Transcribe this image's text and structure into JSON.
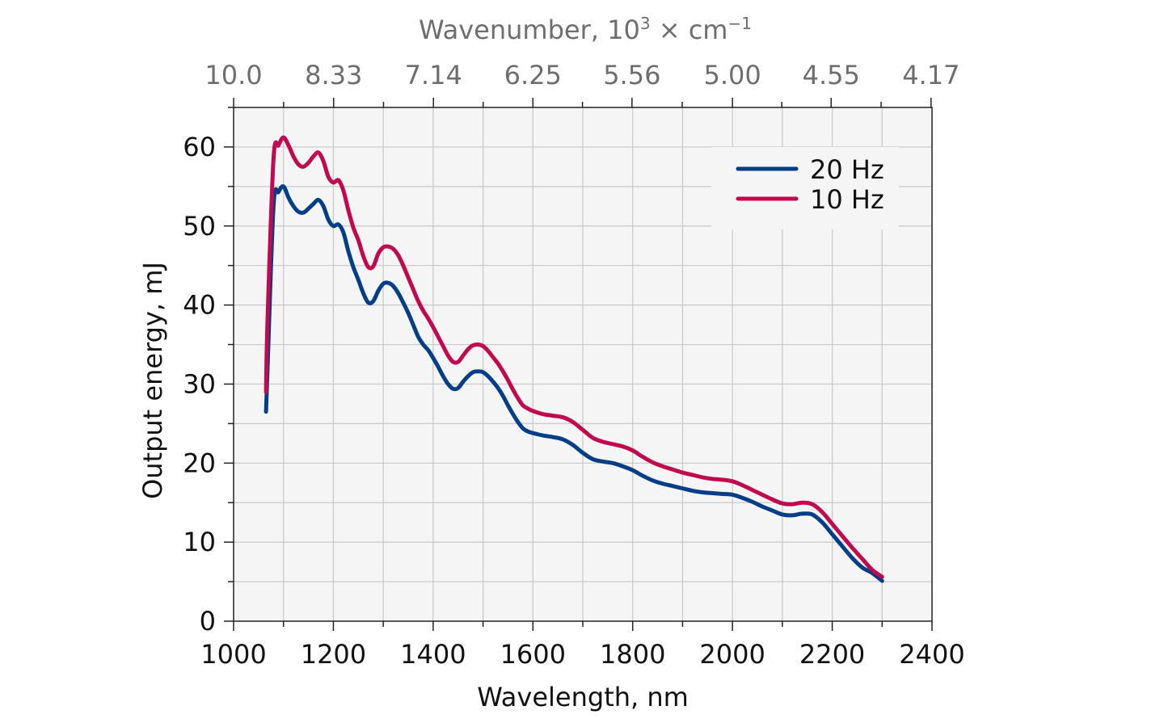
{
  "chart_data": {
    "type": "line",
    "xlabel": "Wavelength, nm",
    "ylabel": "Output energy, mJ",
    "top_axis": {
      "label_prefix": "Wavenumber, 10",
      "label_exponent": "3",
      "label_mid": " × cm",
      "label_unit_exponent": "−1",
      "tick_labels": [
        "10.0",
        "8.33",
        "7.14",
        "6.25",
        "5.56",
        "5.00",
        "4.55",
        "4.17"
      ],
      "tick_wavenumbers": [
        10.0,
        8.33,
        7.14,
        6.25,
        5.56,
        5.0,
        4.55,
        4.17
      ]
    },
    "xlim": [
      1000,
      2400
    ],
    "ylim": [
      0,
      65
    ],
    "x_ticks": [
      1000,
      1200,
      1400,
      1600,
      1800,
      2000,
      2200,
      2400
    ],
    "y_ticks": [
      0,
      10,
      20,
      30,
      40,
      50,
      60
    ],
    "grid": true,
    "legend_position": "top-right",
    "series": [
      {
        "name": "20 Hz",
        "color": "#003f87",
        "x": [
          1065,
          1068,
          1080,
          1090,
          1100,
          1110,
          1120,
          1130,
          1140,
          1150,
          1160,
          1170,
          1180,
          1190,
          1200,
          1210,
          1220,
          1230,
          1240,
          1250,
          1260,
          1270,
          1280,
          1290,
          1300,
          1310,
          1320,
          1330,
          1340,
          1350,
          1360,
          1370,
          1380,
          1390,
          1400,
          1410,
          1420,
          1430,
          1440,
          1450,
          1460,
          1470,
          1480,
          1490,
          1500,
          1510,
          1520,
          1530,
          1540,
          1550,
          1560,
          1570,
          1580,
          1590,
          1600,
          1620,
          1640,
          1660,
          1680,
          1700,
          1720,
          1740,
          1760,
          1780,
          1800,
          1820,
          1840,
          1860,
          1880,
          1900,
          1920,
          1940,
          1960,
          1980,
          2000,
          2020,
          2040,
          2060,
          2080,
          2100,
          2120,
          2140,
          2160,
          2180,
          2200,
          2220,
          2240,
          2260,
          2280,
          2300
        ],
        "values": [
          26.5,
          32,
          52.5,
          54.3,
          55.0,
          53.6,
          52.5,
          51.8,
          51.7,
          52.2,
          52.8,
          53.3,
          52.5,
          50.8,
          50.0,
          50.2,
          49.2,
          46.8,
          44.8,
          43.2,
          41.5,
          40.3,
          40.5,
          41.8,
          42.7,
          42.8,
          42.4,
          41.5,
          40.3,
          39.0,
          37.5,
          36.0,
          35.0,
          34.3,
          33.3,
          32.2,
          31.0,
          30.0,
          29.4,
          29.5,
          30.3,
          31.0,
          31.5,
          31.6,
          31.5,
          31.0,
          30.3,
          29.5,
          28.5,
          27.3,
          26.2,
          25.2,
          24.4,
          24.0,
          23.8,
          23.5,
          23.3,
          23.0,
          22.3,
          21.3,
          20.5,
          20.2,
          20.0,
          19.6,
          19.1,
          18.4,
          17.8,
          17.4,
          17.1,
          16.8,
          16.5,
          16.3,
          16.2,
          16.1,
          16.0,
          15.6,
          15.1,
          14.5,
          14.0,
          13.5,
          13.4,
          13.6,
          13.5,
          12.5,
          11.0,
          9.5,
          8.0,
          6.8,
          6.1,
          5.1
        ]
      },
      {
        "name": "10 Hz",
        "color": "#c0094f",
        "x": [
          1065,
          1068,
          1080,
          1090,
          1100,
          1110,
          1120,
          1130,
          1140,
          1150,
          1160,
          1170,
          1180,
          1190,
          1200,
          1210,
          1220,
          1230,
          1240,
          1250,
          1260,
          1270,
          1280,
          1290,
          1300,
          1310,
          1320,
          1330,
          1340,
          1350,
          1360,
          1370,
          1380,
          1390,
          1400,
          1410,
          1420,
          1430,
          1440,
          1450,
          1460,
          1470,
          1480,
          1490,
          1500,
          1510,
          1520,
          1530,
          1540,
          1550,
          1560,
          1570,
          1580,
          1590,
          1600,
          1620,
          1640,
          1660,
          1680,
          1700,
          1720,
          1740,
          1760,
          1780,
          1800,
          1820,
          1840,
          1860,
          1880,
          1900,
          1920,
          1940,
          1960,
          1980,
          2000,
          2020,
          2040,
          2060,
          2080,
          2100,
          2120,
          2140,
          2160,
          2180,
          2200,
          2220,
          2240,
          2260,
          2280,
          2300
        ],
        "values": [
          29.0,
          38,
          58.5,
          60.2,
          61.2,
          60.2,
          58.8,
          57.8,
          57.5,
          58.0,
          58.8,
          59.3,
          58.2,
          56.2,
          55.5,
          55.8,
          54.5,
          52.0,
          49.8,
          48.2,
          46.2,
          44.8,
          44.9,
          46.5,
          47.3,
          47.4,
          47.1,
          46.3,
          45.0,
          43.5,
          42.0,
          40.5,
          39.3,
          38.3,
          37.2,
          36.0,
          34.8,
          33.6,
          32.8,
          32.8,
          33.6,
          34.4,
          34.9,
          35.0,
          34.8,
          34.2,
          33.4,
          32.6,
          31.6,
          30.5,
          29.3,
          28.2,
          27.3,
          26.9,
          26.6,
          26.2,
          26.0,
          25.8,
          25.2,
          24.2,
          23.2,
          22.7,
          22.4,
          22.1,
          21.6,
          20.8,
          20.1,
          19.6,
          19.2,
          18.8,
          18.5,
          18.2,
          18.0,
          17.9,
          17.7,
          17.2,
          16.6,
          16.0,
          15.4,
          14.9,
          14.8,
          15.0,
          14.8,
          13.8,
          12.3,
          10.8,
          9.3,
          7.9,
          6.5,
          5.6
        ]
      }
    ]
  }
}
